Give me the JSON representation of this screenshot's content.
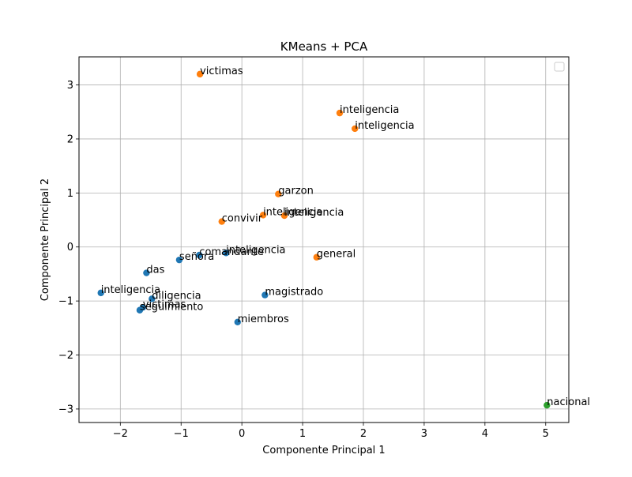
{
  "chart_data": {
    "type": "scatter",
    "title": "KMeans + PCA",
    "xlabel": "Componente Principal 1",
    "ylabel": "Componente Principal 2",
    "xlim": [
      -2.68,
      5.38
    ],
    "ylim": [
      -3.25,
      3.52
    ],
    "xticks": [
      -2,
      -1,
      0,
      1,
      2,
      3,
      4,
      5
    ],
    "yticks": [
      -3,
      -2,
      -1,
      0,
      1,
      2,
      3
    ],
    "grid": true,
    "legend": "top-right",
    "cluster_colors": [
      "#1f77b4",
      "#ff7f0e",
      "#2ca02c"
    ],
    "points": [
      {
        "x": -0.69,
        "y": 3.2,
        "label": "victimas",
        "cluster": 1
      },
      {
        "x": 1.61,
        "y": 2.48,
        "label": "inteligencia",
        "cluster": 1
      },
      {
        "x": 1.86,
        "y": 2.19,
        "label": "inteligencia",
        "cluster": 1
      },
      {
        "x": 0.6,
        "y": 0.98,
        "label": "garzon",
        "cluster": 1
      },
      {
        "x": 0.35,
        "y": 0.59,
        "label": "inteligencia",
        "cluster": 1
      },
      {
        "x": 0.7,
        "y": 0.58,
        "label": "inteligencia",
        "cluster": 1
      },
      {
        "x": -0.33,
        "y": 0.47,
        "label": "convivir",
        "cluster": 1
      },
      {
        "x": 1.23,
        "y": -0.19,
        "label": "general",
        "cluster": 1
      },
      {
        "x": -0.26,
        "y": -0.11,
        "label": "inteligencia",
        "cluster": 0
      },
      {
        "x": -0.7,
        "y": -0.15,
        "label": "comandante",
        "cluster": 0
      },
      {
        "x": -1.03,
        "y": -0.24,
        "label": "señora",
        "cluster": 0
      },
      {
        "x": -1.57,
        "y": -0.48,
        "label": "das",
        "cluster": 0
      },
      {
        "x": -2.32,
        "y": -0.85,
        "label": "inteligencia",
        "cluster": 0
      },
      {
        "x": -1.48,
        "y": -0.96,
        "label": "diligencia",
        "cluster": 0
      },
      {
        "x": 0.38,
        "y": -0.89,
        "label": "magistrado",
        "cluster": 0
      },
      {
        "x": -1.63,
        "y": -1.12,
        "label": "victimas",
        "cluster": 0
      },
      {
        "x": -1.68,
        "y": -1.17,
        "label": "seguimiento",
        "cluster": 0
      },
      {
        "x": -0.07,
        "y": -1.39,
        "label": "miembros",
        "cluster": 0
      },
      {
        "x": 5.02,
        "y": -2.93,
        "label": "nacional",
        "cluster": 2
      }
    ]
  }
}
